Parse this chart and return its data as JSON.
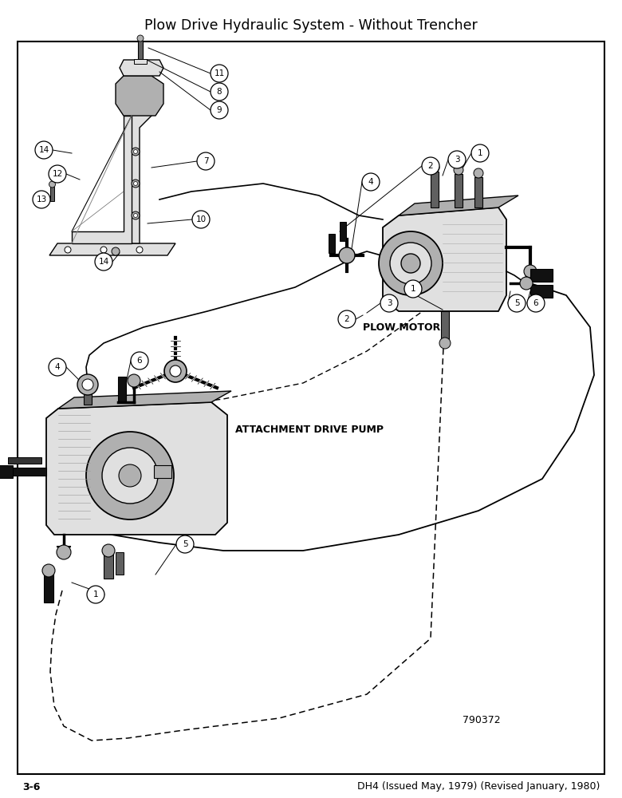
{
  "title": "Plow Drive Hydraulic System - Without Trencher",
  "footer_left": "3-6",
  "footer_right": "DH4 (Issued May, 1979) (Revised January, 1980)",
  "part_number": "790372",
  "bg": "#ffffff",
  "black": "#000000",
  "gray_light": "#e0e0e0",
  "gray_mid": "#b0b0b0",
  "gray_dark": "#606060",
  "title_fs": 12.5,
  "footer_fs": 9,
  "callout_fs": 7.5,
  "label_fs": 9,
  "plow_motor_label": "PLOW MOTOR",
  "pump_label": "ATTACHMENT DRIVE PUMP"
}
